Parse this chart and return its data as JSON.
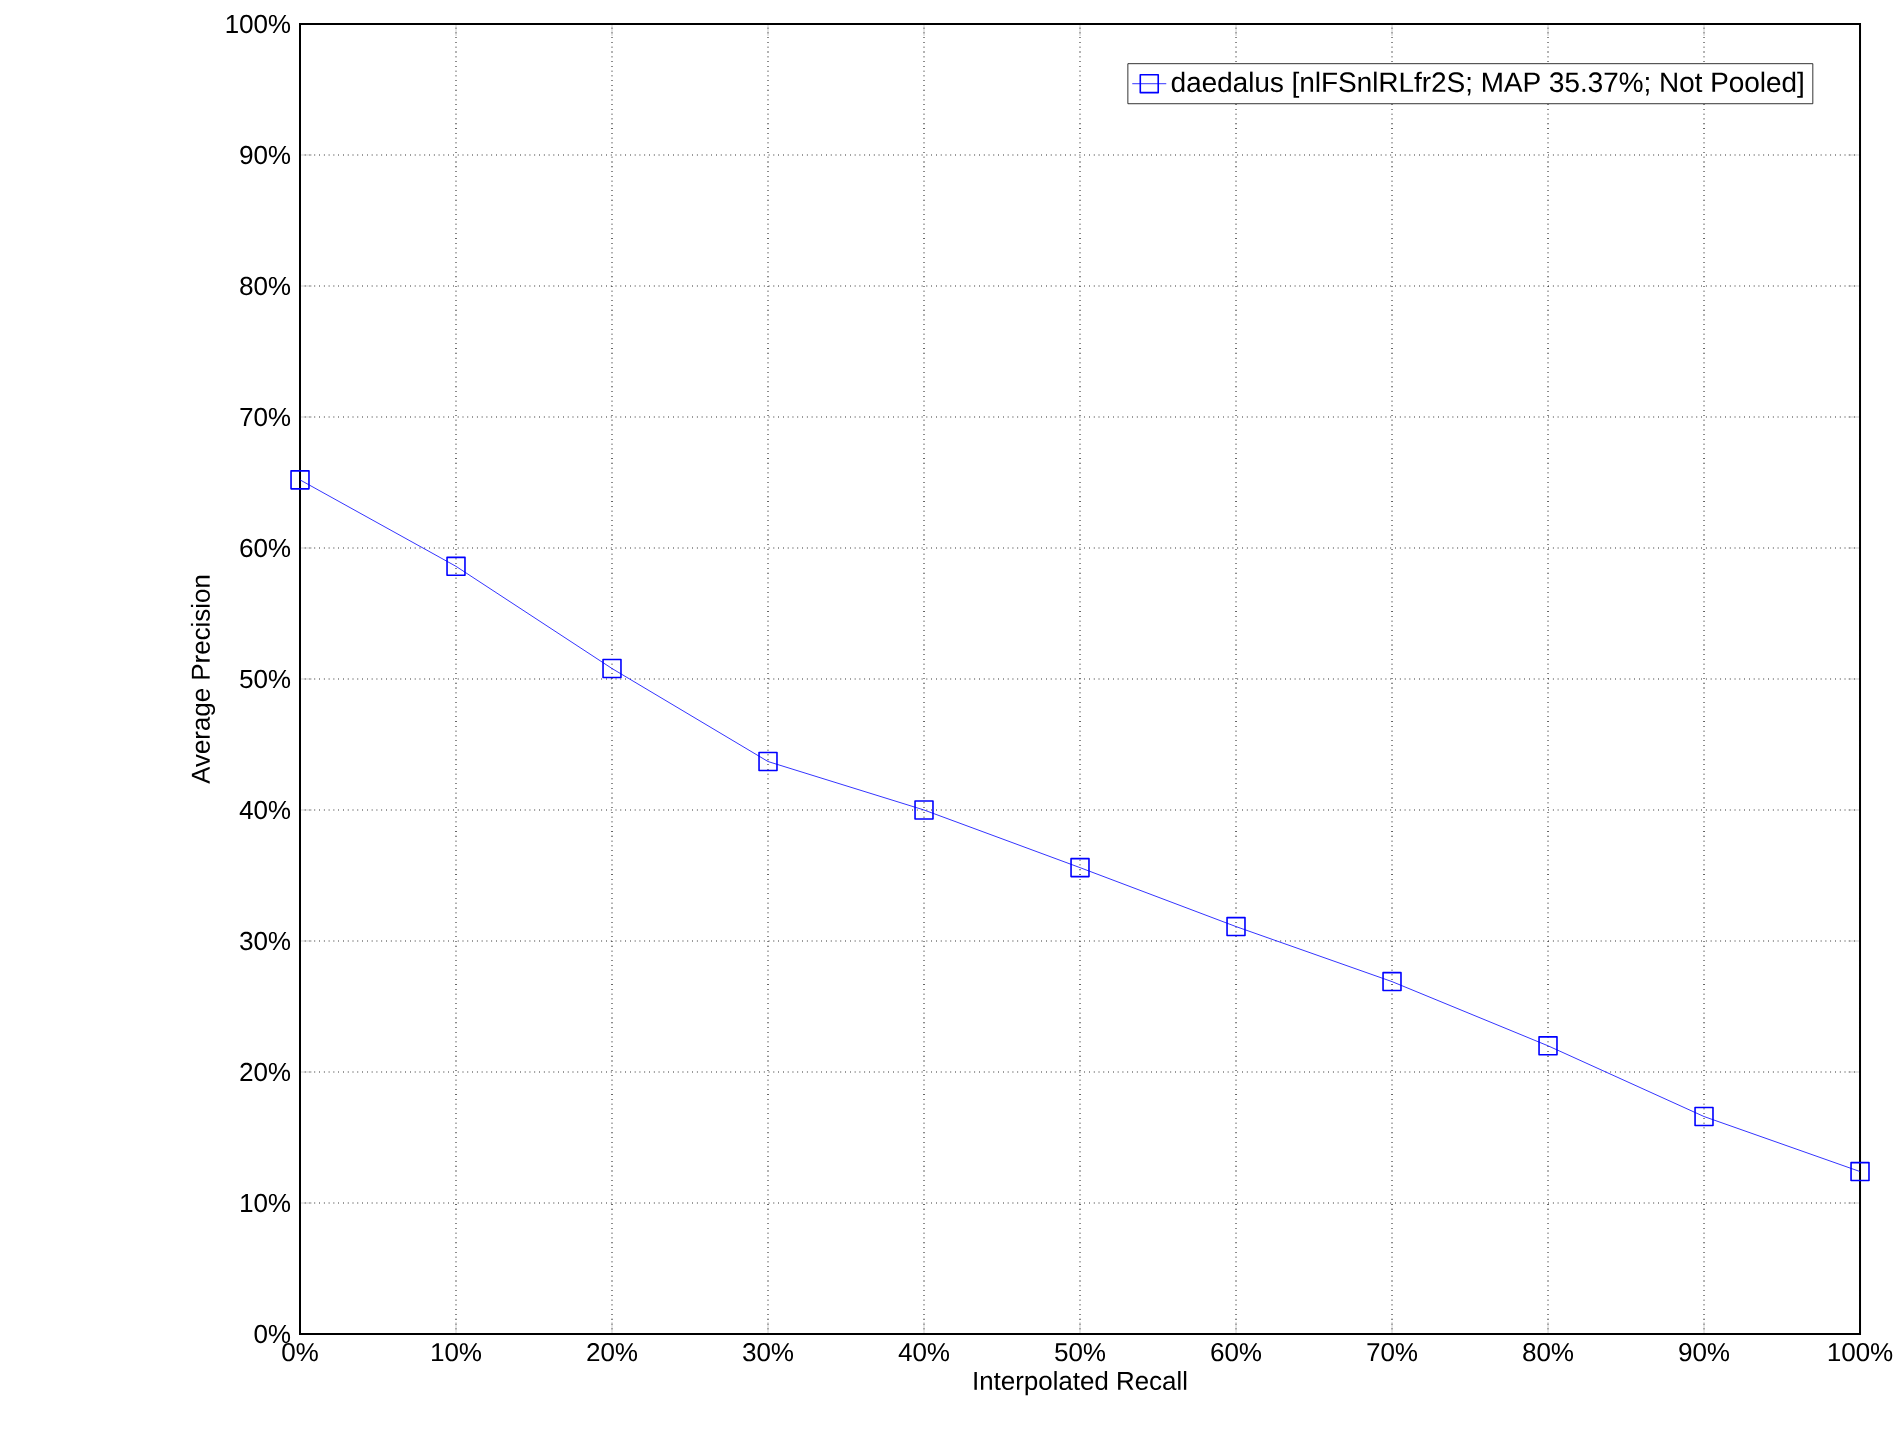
{
  "chart_data": {
    "type": "line",
    "xlabel": "Interpolated Recall",
    "ylabel": "Average Precision",
    "x": [
      0,
      10,
      20,
      30,
      40,
      50,
      60,
      70,
      80,
      90,
      100
    ],
    "series": [
      {
        "name": "daedalus [nlFSnlRLfr2S; MAP 35.37%; Not Pooled]",
        "color": "#0000ff",
        "values": [
          65.2,
          58.6,
          50.8,
          43.7,
          40.0,
          35.6,
          31.1,
          26.9,
          22.0,
          16.6,
          12.4
        ]
      }
    ],
    "xlim": [
      0,
      100
    ],
    "ylim": [
      0,
      100
    ],
    "xticks": [
      {
        "value": 0,
        "label": "0%"
      },
      {
        "value": 10,
        "label": "10%"
      },
      {
        "value": 20,
        "label": "20%"
      },
      {
        "value": 30,
        "label": "30%"
      },
      {
        "value": 40,
        "label": "40%"
      },
      {
        "value": 50,
        "label": "50%"
      },
      {
        "value": 60,
        "label": "60%"
      },
      {
        "value": 70,
        "label": "70%"
      },
      {
        "value": 80,
        "label": "80%"
      },
      {
        "value": 90,
        "label": "90%"
      },
      {
        "value": 100,
        "label": "100%"
      }
    ],
    "yticks": [
      {
        "value": 0,
        "label": "0%"
      },
      {
        "value": 10,
        "label": "10%"
      },
      {
        "value": 20,
        "label": "20%"
      },
      {
        "value": 30,
        "label": "30%"
      },
      {
        "value": 40,
        "label": "40%"
      },
      {
        "value": 50,
        "label": "50%"
      },
      {
        "value": 60,
        "label": "60%"
      },
      {
        "value": 70,
        "label": "70%"
      },
      {
        "value": 80,
        "label": "80%"
      },
      {
        "value": 90,
        "label": "90%"
      },
      {
        "value": 100,
        "label": "100%"
      }
    ],
    "grid": true,
    "legend": "top right",
    "marker": "square",
    "line_style": "solid"
  }
}
